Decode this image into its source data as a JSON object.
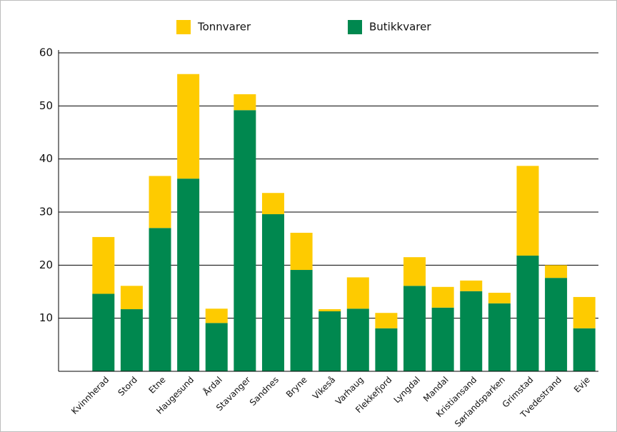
{
  "chart_data": {
    "type": "stacked_bar",
    "categories": [
      "Kvinnherad",
      "Stord",
      "Etne",
      "Haugesund",
      "Årdal",
      "Stavanger",
      "Sandnes",
      "Bryne",
      "Vikeså",
      "Varhaug",
      "Flekkefjord",
      "Lyngdal",
      "Mandal",
      "Kristiansand",
      "Sørlandsparken",
      "Grimstad",
      "Tvedestrand",
      "Evje"
    ],
    "series": [
      {
        "name": "Tonnvarer",
        "color": "#fecb00",
        "values": [
          10.7,
          4.4,
          9.8,
          19.7,
          2.7,
          3.0,
          4.0,
          7.0,
          0.4,
          5.9,
          2.9,
          5.4,
          3.9,
          2.0,
          2.0,
          16.9,
          2.4,
          5.9
        ]
      },
      {
        "name": "Butikkvarer",
        "color": "#00884f",
        "values": [
          14.6,
          11.7,
          27.0,
          36.3,
          9.1,
          49.2,
          29.6,
          19.1,
          11.3,
          11.8,
          8.1,
          16.1,
          12.0,
          15.1,
          12.8,
          21.8,
          17.6,
          8.1
        ]
      }
    ],
    "ylim": [
      0,
      60
    ],
    "yticks": [
      10,
      20,
      30,
      40,
      50,
      60
    ],
    "grid": true
  }
}
